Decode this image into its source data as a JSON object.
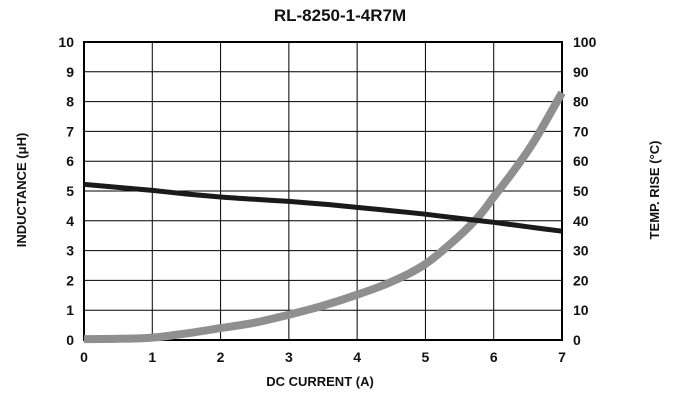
{
  "chart_data": {
    "type": "line",
    "title": "RL-8250-1-4R7M",
    "xlabel": "DC CURRENT (A)",
    "ylabel": "INDUCTANCE (μH)",
    "y2label": "TEMP. RISE (°C)",
    "xlim": [
      0,
      7
    ],
    "ylim": [
      0,
      10
    ],
    "y2lim": [
      0,
      100
    ],
    "x_ticks": [
      "0",
      "1",
      "2",
      "3",
      "4",
      "5",
      "6",
      "7"
    ],
    "y_ticks": [
      "0",
      "1",
      "2",
      "3",
      "4",
      "5",
      "6",
      "7",
      "8",
      "9",
      "10"
    ],
    "y2_ticks": [
      "0",
      "10",
      "20",
      "30",
      "40",
      "50",
      "60",
      "70",
      "80",
      "90",
      "100"
    ],
    "grid": true,
    "series": [
      {
        "axis": "left",
        "color": "#1a1a1a",
        "x": [
          0,
          0.5,
          1,
          1.5,
          2,
          2.5,
          3,
          3.5,
          4,
          4.5,
          5,
          5.5,
          6,
          6.5,
          7
        ],
        "values": [
          5.22,
          5.12,
          5.02,
          4.9,
          4.8,
          4.72,
          4.65,
          4.56,
          4.45,
          4.34,
          4.22,
          4.08,
          3.95,
          3.8,
          3.65
        ]
      },
      {
        "axis": "right",
        "color": "#8f8f8f",
        "x": [
          0,
          0.5,
          1,
          1.5,
          2,
          2.5,
          3,
          3.5,
          4,
          4.5,
          5,
          5.5,
          5.8,
          6,
          6.3,
          6.6,
          7
        ],
        "values": [
          0.3,
          0.4,
          0.8,
          2.2,
          4,
          5.8,
          8.5,
          11.5,
          15.2,
          19.5,
          25.5,
          35,
          42,
          48,
          57,
          67,
          83
        ]
      }
    ]
  }
}
